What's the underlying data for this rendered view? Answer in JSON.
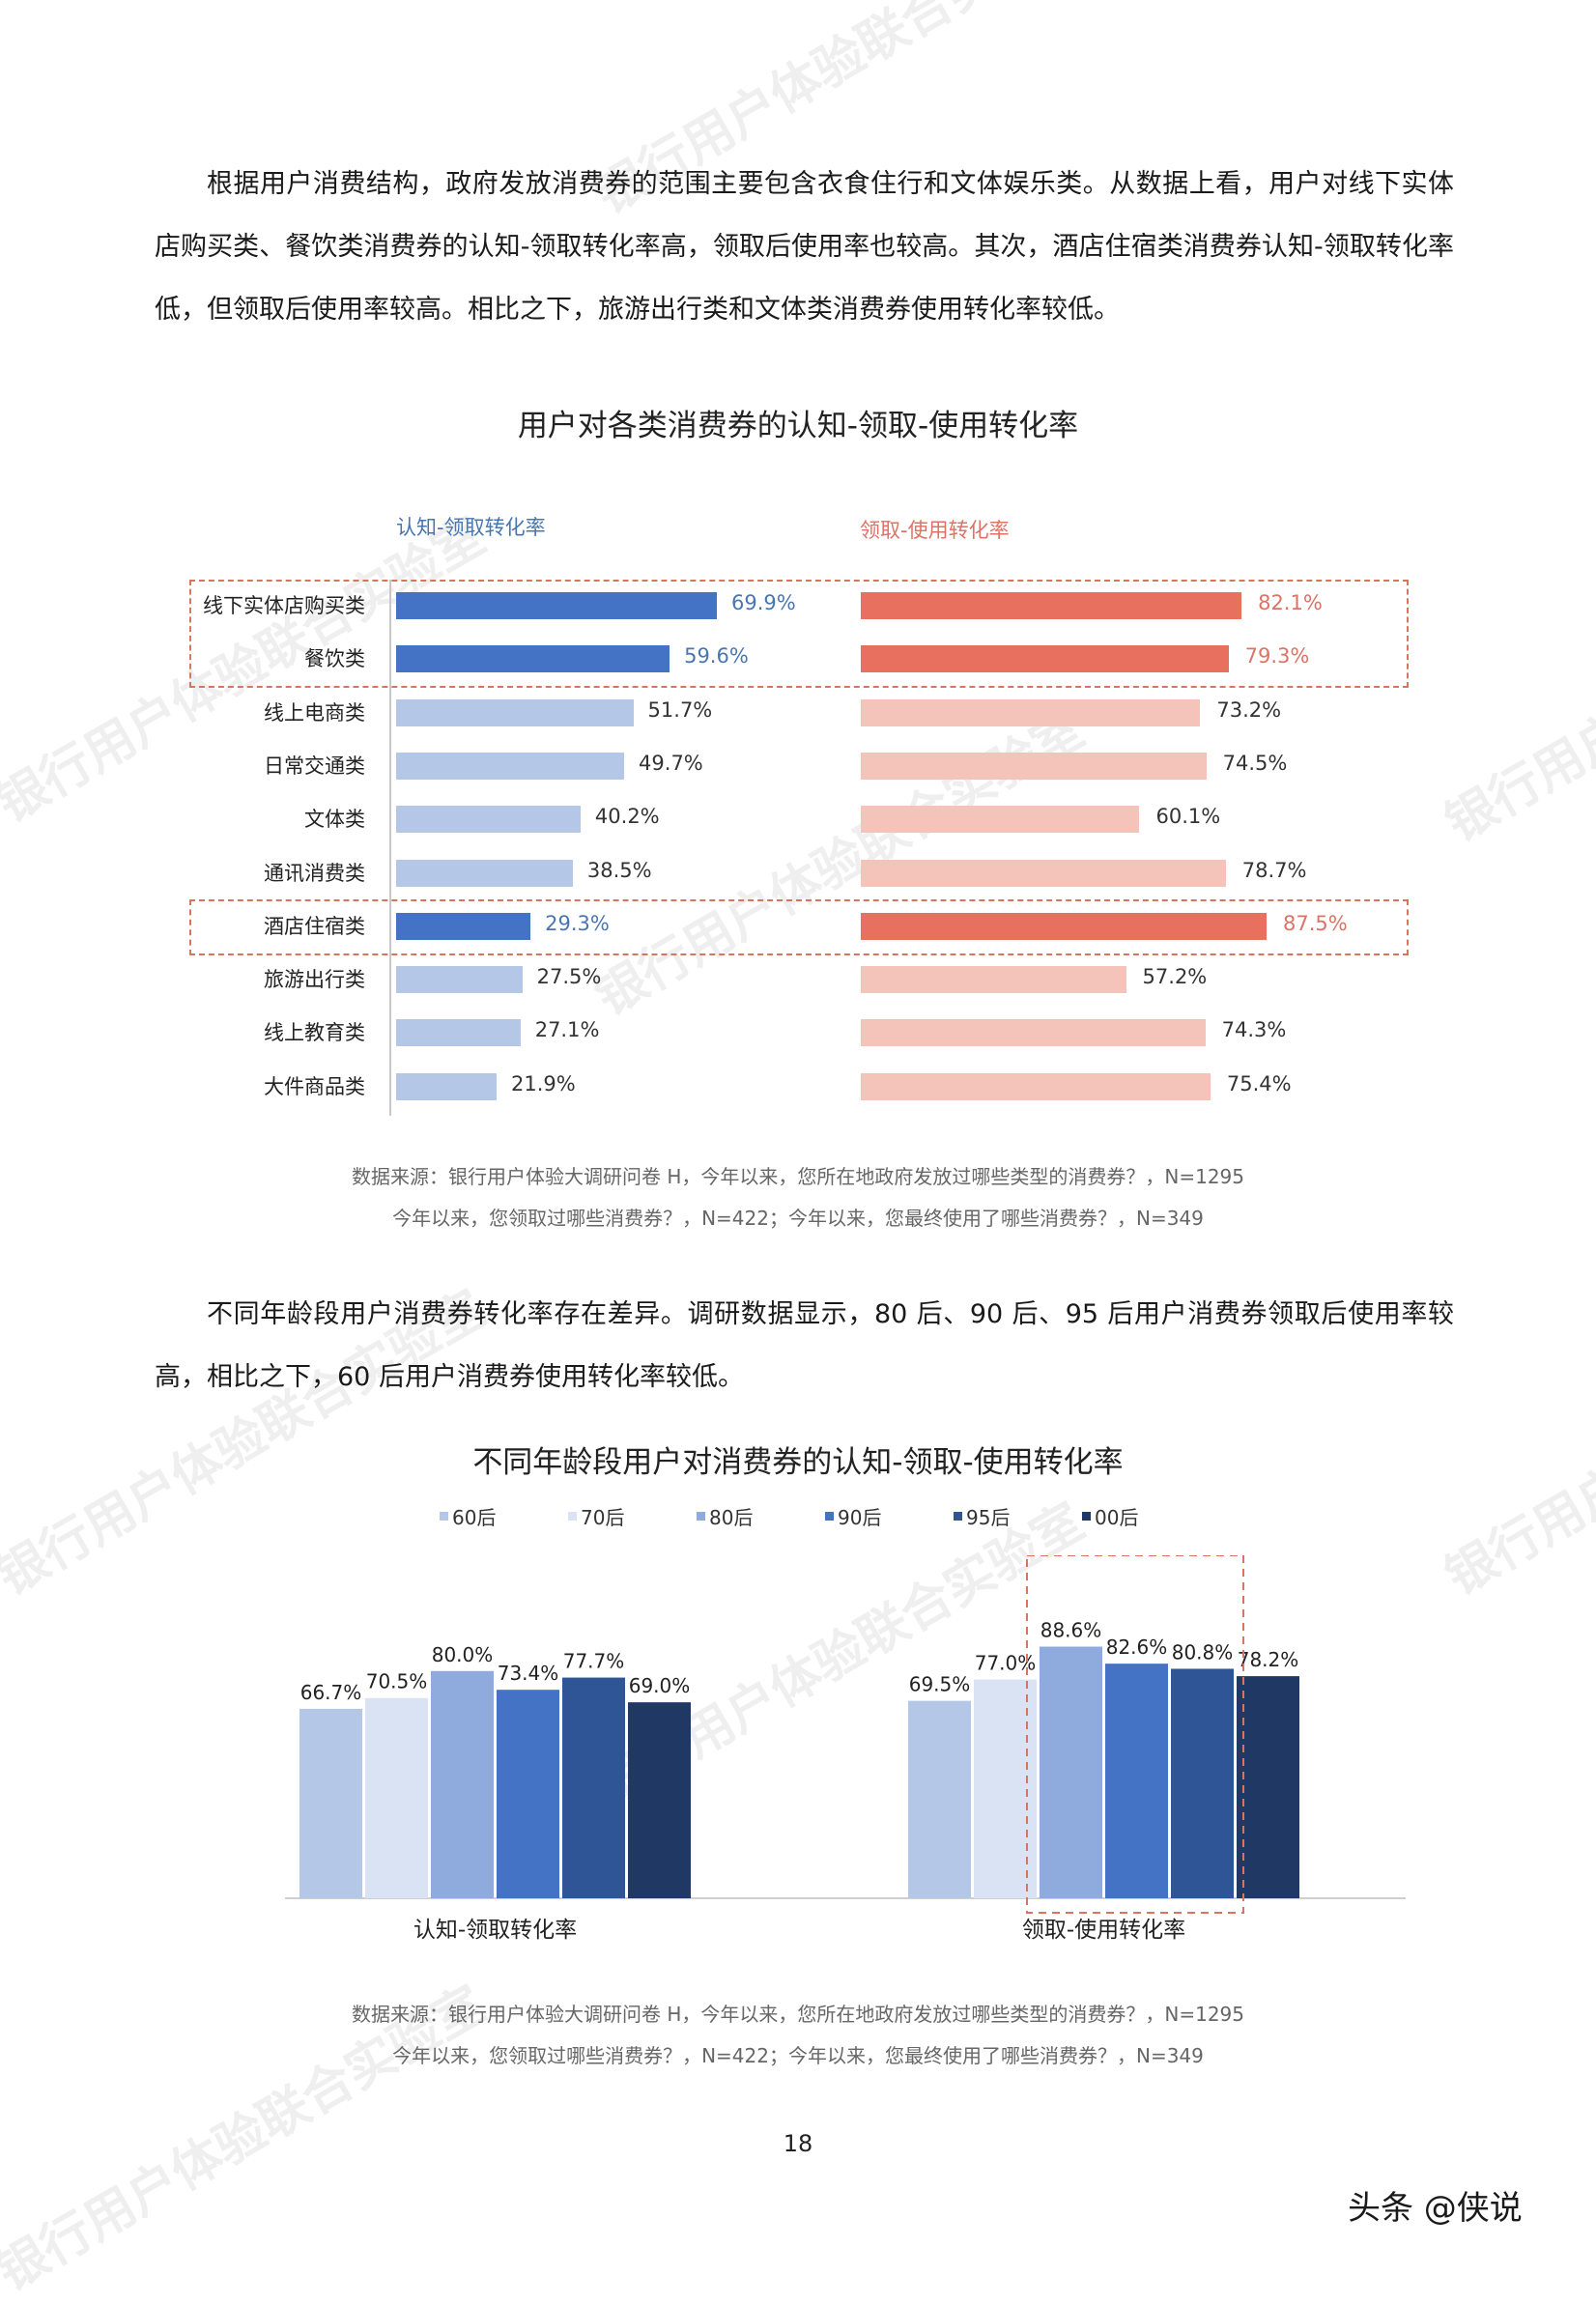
{
  "paragraph1": "根据用户消费结构，政府发放消费券的范围主要包含衣食住行和文体娱乐类。从数据上看，用户对线下实体店购买类、餐饮类消费券的认知-领取转化率高，领取后使用率也较高。其次，酒店住宿类消费券认知-领取转化率低，但领取后使用率较高。相比之下，旅游出行类和文体类消费券使用转化率较低。",
  "paragraph2": "不同年龄段用户消费券转化率存在差异。调研数据显示，80 后、90 后、95 后用户消费券领取后使用率较高，相比之下，60 后用户消费券使用转化率较低。",
  "watermark_text": "银行用户体验联合实验室",
  "page_number": "18",
  "brand": "头条 @侠说",
  "chart_data": [
    {
      "type": "bar",
      "orientation": "horizontal",
      "title": "用户对各类消费券的认知-领取-使用转化率",
      "categories": [
        "线下实体店购买类",
        "餐饮类",
        "线上电商类",
        "日常交通类",
        "文体类",
        "通讯消费类",
        "酒店住宿类",
        "旅游出行类",
        "线上教育类",
        "大件商品类"
      ],
      "series": [
        {
          "name": "认知-领取转化率",
          "values": [
            69.9,
            59.6,
            51.7,
            49.7,
            40.2,
            38.5,
            29.3,
            27.5,
            27.1,
            21.9
          ],
          "labels": [
            "69.9%",
            "59.6%",
            "51.7%",
            "49.7%",
            "40.2%",
            "38.5%",
            "29.3%",
            "27.5%",
            "27.1%",
            "21.9%"
          ]
        },
        {
          "name": "领取-使用转化率",
          "values": [
            82.1,
            79.3,
            73.2,
            74.5,
            60.1,
            78.7,
            87.5,
            57.2,
            74.3,
            75.4
          ],
          "labels": [
            "82.1%",
            "79.3%",
            "73.2%",
            "74.5%",
            "60.1%",
            "78.7%",
            "87.5%",
            "57.2%",
            "74.3%",
            "75.4%"
          ]
        }
      ],
      "highlighted": [
        "线下实体店购买类",
        "餐饮类",
        "酒店住宿类"
      ],
      "colors": {
        "left_strong": "#4472c4",
        "left_light": "#b4c7e7",
        "right_strong": "#e8705e",
        "right_light": "#f4c3ba",
        "left_label": "#4a76b0",
        "right_label": "#dd7366"
      },
      "source_line1": "数据来源：银行用户体验大调研问卷 H，今年以来，您所在地政府发放过哪些类型的消费券？，N=1295",
      "source_line2": "今年以来，您领取过哪些消费券？，N=422；今年以来，您最终使用了哪些消费券？，N=349"
    },
    {
      "type": "bar",
      "orientation": "vertical",
      "title": "不同年龄段用户对消费券的认知-领取-使用转化率",
      "categories": [
        "认知-领取转化率",
        "领取-使用转化率"
      ],
      "series": [
        {
          "name": "60后",
          "values": [
            66.7,
            69.5
          ],
          "color": "#b4c7e7"
        },
        {
          "name": "70后",
          "values": [
            70.5,
            77.0
          ],
          "color": "#dae3f3"
        },
        {
          "name": "80后",
          "values": [
            80.0,
            88.6
          ],
          "color": "#8faadc"
        },
        {
          "name": "90后",
          "values": [
            73.4,
            82.6
          ],
          "color": "#4472c4"
        },
        {
          "name": "95后",
          "values": [
            77.7,
            80.8
          ],
          "color": "#2f5597"
        },
        {
          "name": "00后",
          "values": [
            69.0,
            78.2
          ],
          "color": "#203864"
        }
      ],
      "value_labels": [
        [
          "66.7%",
          "70.5%",
          "80.0%",
          "73.4%",
          "77.7%",
          "69.0%"
        ],
        [
          "69.5%",
          "77.0%",
          "88.6%",
          "82.6%",
          "80.8%",
          "78.2%"
        ]
      ],
      "highlighted_group": "领取-使用转化率",
      "highlighted_series": [
        "80后",
        "90后",
        "95后"
      ],
      "source_line1": "数据来源：银行用户体验大调研问卷 H，今年以来，您所在地政府发放过哪些类型的消费券？，N=1295",
      "source_line2": "今年以来，您领取过哪些消费券？，N=422；今年以来，您最终使用了哪些消费券？，N=349"
    }
  ]
}
